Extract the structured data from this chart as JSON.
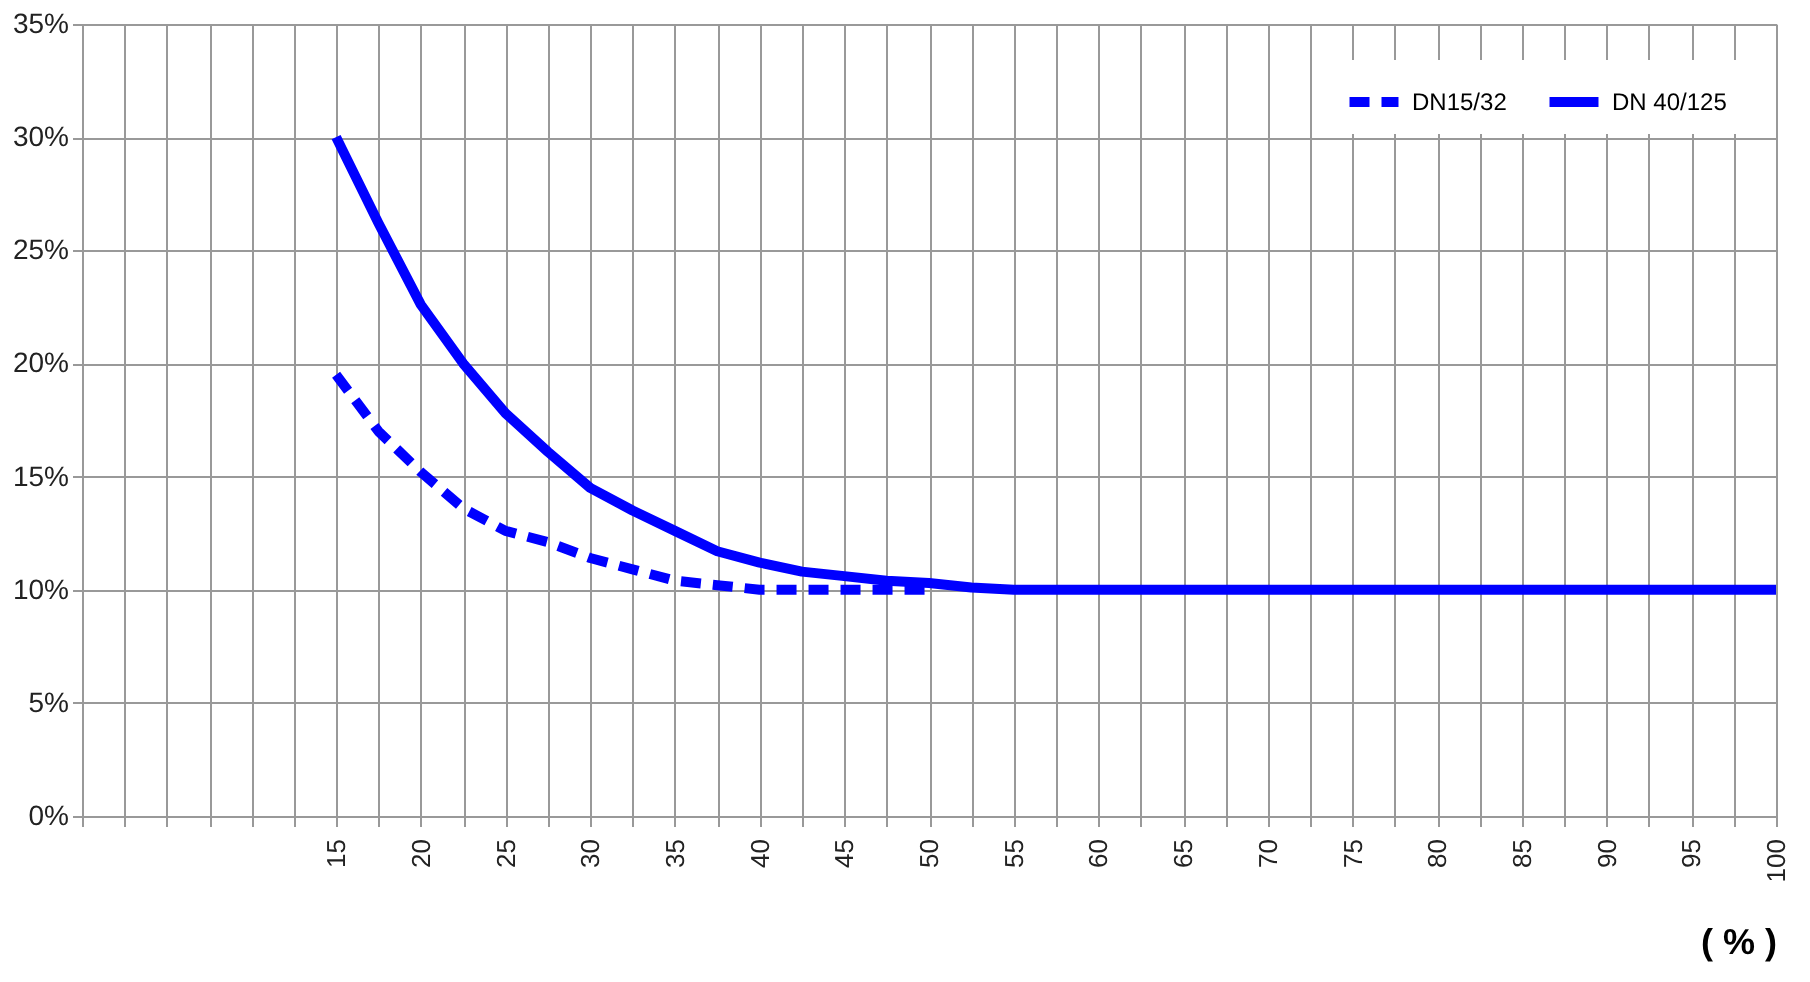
{
  "chart_data": {
    "type": "line",
    "xlabel": "( % )",
    "xlim": [
      0,
      100
    ],
    "ylim": [
      0,
      35
    ],
    "xticks": [
      {
        "value": 0,
        "label": null
      },
      {
        "value": 2.5,
        "label": null
      },
      {
        "value": 5,
        "label": null
      },
      {
        "value": 7.5,
        "label": null
      },
      {
        "value": 10,
        "label": null
      },
      {
        "value": 12.5,
        "label": null
      },
      15,
      {
        "value": 17.5,
        "label": null
      },
      20,
      {
        "value": 22.5,
        "label": null
      },
      25,
      {
        "value": 27.5,
        "label": null
      },
      30,
      {
        "value": 32.5,
        "label": null
      },
      35,
      {
        "value": 37.5,
        "label": null
      },
      40,
      {
        "value": 42.5,
        "label": null
      },
      45,
      {
        "value": 47.5,
        "label": null
      },
      50,
      {
        "value": 52.5,
        "label": null
      },
      55,
      {
        "value": 57.5,
        "label": null
      },
      60,
      {
        "value": 62.5,
        "label": null
      },
      65,
      {
        "value": 67.5,
        "label": null
      },
      70,
      {
        "value": 72.5,
        "label": null
      },
      75,
      {
        "value": 77.5,
        "label": null
      },
      80,
      {
        "value": 82.5,
        "label": null
      },
      85,
      {
        "value": 87.5,
        "label": null
      },
      90,
      {
        "value": 92.5,
        "label": null
      },
      95,
      {
        "value": 97.5,
        "label": null
      },
      100
    ],
    "yticks": [
      {
        "value": 0,
        "label": "0%"
      },
      {
        "value": 5,
        "label": "5%"
      },
      {
        "value": 10,
        "label": "10%"
      },
      {
        "value": 15,
        "label": "15%"
      },
      {
        "value": 20,
        "label": "20%"
      },
      {
        "value": 25,
        "label": "25%"
      },
      {
        "value": 30,
        "label": "30%"
      },
      {
        "value": 35,
        "label": "35%"
      }
    ],
    "grid": true,
    "legend": "top right",
    "marker": "none",
    "series": [
      {
        "name": "DN15/32",
        "color": "#0000ff",
        "line_style": "dashed",
        "x": [
          15,
          17.5,
          20,
          22.5,
          25,
          27.5,
          30,
          32.5,
          35,
          37.5,
          40,
          42.5,
          45,
          47.5,
          50
        ],
        "values": [
          19.5,
          17.0,
          15.2,
          13.6,
          12.6,
          12.1,
          11.4,
          10.9,
          10.4,
          10.2,
          10.0,
          10.0,
          10.0,
          10.0,
          10.0
        ]
      },
      {
        "name": "DN 40/125",
        "color": "#0000ff",
        "line_style": "solid",
        "x": [
          15,
          17.5,
          20,
          22.5,
          25,
          27.5,
          30,
          32.5,
          35,
          37.5,
          40,
          42.5,
          45,
          47.5,
          50,
          52.5,
          55,
          57.5,
          60,
          62.5,
          65,
          67.5,
          70,
          72.5,
          75,
          77.5,
          80,
          82.5,
          85,
          87.5,
          90,
          92.5,
          95,
          97.5,
          100
        ],
        "values": [
          30,
          26.2,
          22.6,
          20.0,
          17.8,
          16.1,
          14.5,
          13.5,
          12.6,
          11.7,
          11.2,
          10.8,
          10.6,
          10.4,
          10.3,
          10.1,
          10,
          10,
          10,
          10,
          10,
          10,
          10,
          10,
          10,
          10,
          10,
          10,
          10,
          10,
          10,
          10,
          10,
          10,
          10
        ]
      }
    ]
  }
}
